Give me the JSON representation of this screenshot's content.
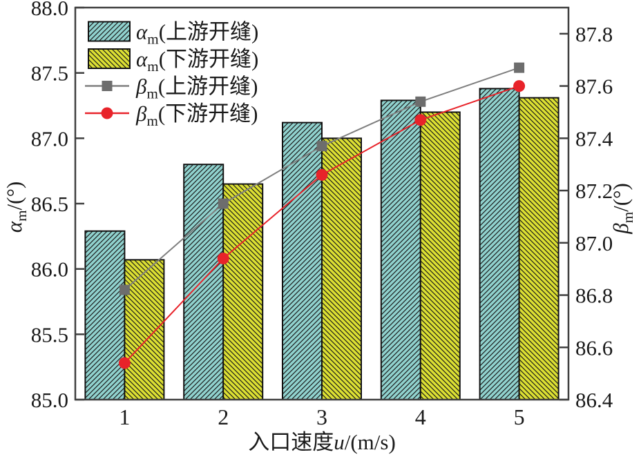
{
  "figure": {
    "background": "#ffffff",
    "frame_color": "#3f3f3f",
    "text_color": "#1a1a1a",
    "bar_outline_color": "#111111",
    "hatch_line_color": "#1c1c1c"
  },
  "chart_data": {
    "type": "combo",
    "subtype": "grouped-bars-with-lines-dual-axis",
    "categories": [
      "1",
      "2",
      "3",
      "4",
      "5"
    ],
    "x_axis": {
      "title_prefix": "入口速度",
      "title_var": "u",
      "title_suffix": "/(m/s)"
    },
    "left_axis": {
      "symbol": "α",
      "sub": "m",
      "suffix": "/(°)",
      "min": 85.0,
      "max": 88.0,
      "tick_step": 0.5,
      "tick_labels": [
        "85.0",
        "85.5",
        "86.0",
        "86.5",
        "87.0",
        "87.5",
        "88.0"
      ]
    },
    "right_axis": {
      "symbol": "β",
      "sub": "m",
      "suffix": "/(°)",
      "min": 86.4,
      "max": 87.9,
      "tick_step": 0.2,
      "tick_labels": [
        "86.4",
        "86.6",
        "86.8",
        "87.0",
        "87.2",
        "87.4",
        "87.6",
        "87.8"
      ]
    },
    "legend_position": "top-left",
    "grid": false,
    "series": [
      {
        "id": "alpha-upstream",
        "kind": "bar",
        "axis": "left",
        "symbol": "α",
        "sub": "m",
        "label": "(上游开缝)",
        "fill": "#90D2CE",
        "hatch": "/",
        "values": [
          86.29,
          86.8,
          87.12,
          87.29,
          87.38
        ]
      },
      {
        "id": "alpha-downstream",
        "kind": "bar",
        "axis": "left",
        "symbol": "α",
        "sub": "m",
        "label": "(下游开缝)",
        "fill": "#DCE032",
        "hatch": "\\",
        "values": [
          86.07,
          86.65,
          87.0,
          87.2,
          87.31
        ]
      },
      {
        "id": "beta-upstream",
        "kind": "line",
        "axis": "right",
        "symbol": "β",
        "sub": "m",
        "label": "(上游开缝)",
        "color": "#7F7F7F",
        "marker": "square",
        "marker_color": "#6D6D6D",
        "values": [
          86.82,
          87.15,
          87.37,
          87.54,
          87.67
        ]
      },
      {
        "id": "beta-downstream",
        "kind": "line",
        "axis": "right",
        "symbol": "β",
        "sub": "m",
        "label": "(下游开缝)",
        "color": "#E8232A",
        "marker": "circle",
        "marker_color": "#E8232A",
        "values": [
          86.54,
          86.94,
          87.26,
          87.47,
          87.6
        ]
      }
    ]
  }
}
